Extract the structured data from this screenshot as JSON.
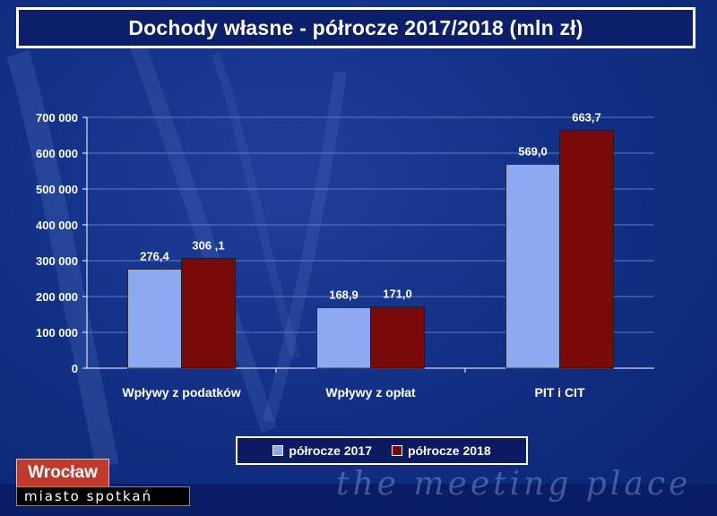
{
  "title": "Dochody własne - półrocze 2017/2018 (mln zł)",
  "chart_data": {
    "type": "bar",
    "categories": [
      "Wpływy z podatków",
      "Wpływy z opłat",
      "PIT i CIT"
    ],
    "series": [
      {
        "name": "półrocze 2017",
        "values": [
          276.4,
          168.9,
          569.0
        ],
        "labels": [
          "276,4",
          "168,9",
          "569,0"
        ],
        "color": "#8fa8f2"
      },
      {
        "name": "półrocze 2018",
        "values": [
          306.1,
          171.0,
          663.7
        ],
        "labels": [
          "306 ,1",
          "171,0",
          "663,7"
        ],
        "color": "#7a0a0a"
      }
    ],
    "yticks": [
      "0",
      "100 000",
      "200 000",
      "300 000",
      "400 000",
      "500 000",
      "600 000",
      "700 000"
    ],
    "ylim": [
      0,
      700
    ],
    "grid": true,
    "legend_position": "bottom"
  },
  "brand": {
    "name": "Wrocław",
    "tagline_pl": "miasto spotkań",
    "tagline_en": "the meeting place"
  },
  "colors": {
    "background": "#123187",
    "bar_2017": "#8fa8f2",
    "bar_2018": "#7a0a0a",
    "brand_red": "#c0392b"
  }
}
